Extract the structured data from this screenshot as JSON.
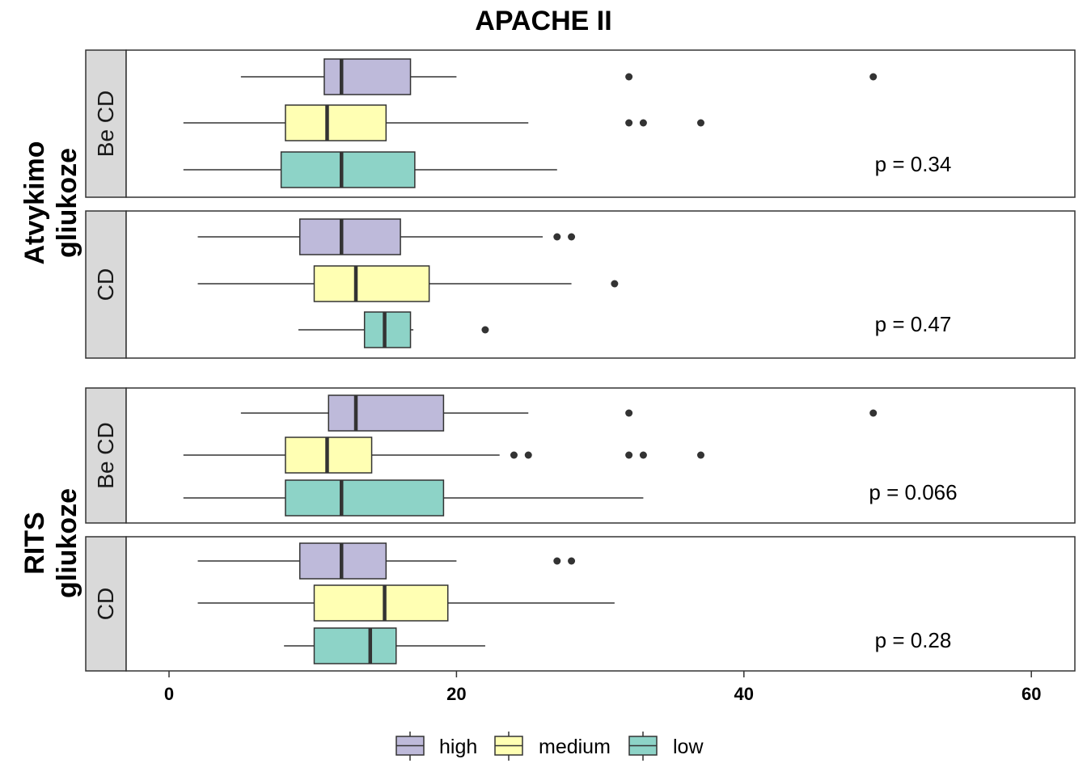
{
  "chart_data": {
    "type": "boxplot",
    "title": "APACHE II",
    "xlim": [
      -5.75,
      62
    ],
    "x_ticks": [
      "0",
      "20",
      "40",
      "60"
    ],
    "x_tick_values": [
      0,
      20,
      40,
      60
    ],
    "colors": {
      "high": "#bebada",
      "medium": "#ffffb3",
      "low": "#8dd3c7"
    },
    "legend": {
      "position": "bottom",
      "items": [
        "high",
        "medium",
        "low"
      ]
    },
    "groups": [
      {
        "label_lines": [
          "Atvykimo",
          "gliukoze"
        ],
        "facets": [
          {
            "strip": "Be CD",
            "p_value": "p = 0.34",
            "boxes": [
              {
                "series": "high",
                "whisker_low": 5,
                "q1": 10.8,
                "median": 12,
                "q3": 16.8,
                "whisker_high": 20,
                "outliers": [
                  32,
                  49
                ]
              },
              {
                "series": "medium",
                "whisker_low": 1,
                "q1": 8.1,
                "median": 11,
                "q3": 15.1,
                "whisker_high": 25,
                "outliers": [
                  32,
                  33,
                  37
                ]
              },
              {
                "series": "low",
                "whisker_low": 1,
                "q1": 7.8,
                "median": 12,
                "q3": 17.1,
                "whisker_high": 27,
                "outliers": []
              }
            ]
          },
          {
            "strip": "CD",
            "p_value": "p = 0.47",
            "boxes": [
              {
                "series": "high",
                "whisker_low": 2,
                "q1": 9.1,
                "median": 12,
                "q3": 16.1,
                "whisker_high": 26,
                "outliers": [
                  27,
                  28
                ]
              },
              {
                "series": "medium",
                "whisker_low": 2,
                "q1": 10.1,
                "median": 13,
                "q3": 18.1,
                "whisker_high": 28,
                "outliers": [
                  31
                ]
              },
              {
                "series": "low",
                "whisker_low": 9,
                "q1": 13.6,
                "median": 15,
                "q3": 16.8,
                "whisker_high": 17,
                "outliers": [
                  22
                ]
              }
            ]
          }
        ]
      },
      {
        "label_lines": [
          "RITS",
          "gliukoze"
        ],
        "facets": [
          {
            "strip": "Be CD",
            "p_value": "p = 0.066",
            "boxes": [
              {
                "series": "high",
                "whisker_low": 5,
                "q1": 11.1,
                "median": 13,
                "q3": 19.1,
                "whisker_high": 25,
                "outliers": [
                  32,
                  49
                ]
              },
              {
                "series": "medium",
                "whisker_low": 1,
                "q1": 8.1,
                "median": 11,
                "q3": 14.1,
                "whisker_high": 23,
                "outliers": [
                  24,
                  25,
                  32,
                  33,
                  37
                ]
              },
              {
                "series": "low",
                "whisker_low": 1,
                "q1": 8.1,
                "median": 12,
                "q3": 19.1,
                "whisker_high": 33,
                "outliers": []
              }
            ]
          },
          {
            "strip": "CD",
            "p_value": "p = 0.28",
            "boxes": [
              {
                "series": "high",
                "whisker_low": 2,
                "q1": 9.1,
                "median": 12,
                "q3": 15.1,
                "whisker_high": 20,
                "outliers": [
                  27,
                  28
                ]
              },
              {
                "series": "medium",
                "whisker_low": 2,
                "q1": 10.1,
                "median": 15,
                "q3": 19.4,
                "whisker_high": 31,
                "outliers": []
              },
              {
                "series": "low",
                "whisker_low": 8,
                "q1": 10.1,
                "median": 14,
                "q3": 15.8,
                "whisker_high": 22,
                "outliers": []
              }
            ]
          }
        ]
      }
    ]
  }
}
